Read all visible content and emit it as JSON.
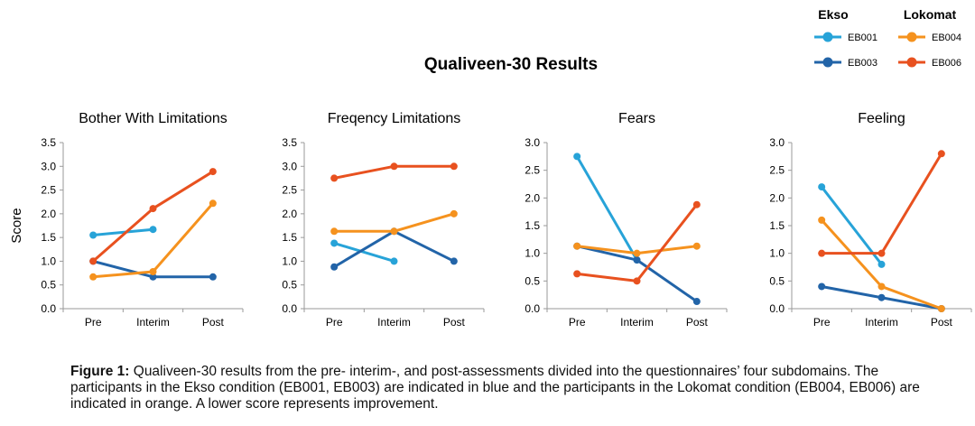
{
  "title": "Qualiveen-30 Results",
  "legend": {
    "groups": [
      {
        "name": "Ekso",
        "entries": [
          {
            "id": "EB001",
            "color": "#27a3d8"
          },
          {
            "id": "EB003",
            "color": "#2264a8"
          }
        ]
      },
      {
        "name": "Lokomat",
        "entries": [
          {
            "id": "EB004",
            "color": "#f5921e"
          },
          {
            "id": "EB006",
            "color": "#e8511f"
          }
        ]
      }
    ]
  },
  "caption": {
    "label": "Figure 1:",
    "text": " Qualiveen-30 results from the pre- interim-, and post-assessments divided into the questionnaires’ four subdomains. The participants in the Ekso condition (EB001, EB003) are indicated in blue and the participants in the Lokomat condition (EB004, EB006) are indicated in orange. A lower score represents improvement."
  },
  "chart_data": [
    {
      "type": "line",
      "title": "Bother With Limitations",
      "ylabel": "Score",
      "categories": [
        "Pre",
        "Interim",
        "Post"
      ],
      "ylim": [
        0,
        3.5
      ],
      "yticks": [
        "0.0",
        "0.5",
        "1.0",
        "1.5",
        "2.0",
        "2.5",
        "3.0",
        "3.5"
      ],
      "series": [
        {
          "name": "EB001",
          "color": "#27a3d8",
          "values": [
            1.55,
            1.67,
            null
          ]
        },
        {
          "name": "EB003",
          "color": "#2264a8",
          "values": [
            1.0,
            0.67,
            0.67
          ]
        },
        {
          "name": "EB004",
          "color": "#f5921e",
          "values": [
            0.67,
            0.78,
            2.22
          ]
        },
        {
          "name": "EB006",
          "color": "#e8511f",
          "values": [
            1.0,
            2.11,
            2.89
          ]
        }
      ]
    },
    {
      "type": "line",
      "title": "Freqency Limitations",
      "ylabel": "",
      "categories": [
        "Pre",
        "Interim",
        "Post"
      ],
      "ylim": [
        0,
        3.5
      ],
      "yticks": [
        "0.0",
        "0.5",
        "1.0",
        "1.5",
        "2.0",
        "2.5",
        "3.0",
        "3.5"
      ],
      "series": [
        {
          "name": "EB001",
          "color": "#27a3d8",
          "values": [
            1.38,
            1.0,
            null
          ]
        },
        {
          "name": "EB003",
          "color": "#2264a8",
          "values": [
            0.88,
            1.63,
            1.0
          ]
        },
        {
          "name": "EB004",
          "color": "#f5921e",
          "values": [
            1.63,
            1.63,
            2.0
          ]
        },
        {
          "name": "EB006",
          "color": "#e8511f",
          "values": [
            2.75,
            3.0,
            3.0
          ]
        }
      ]
    },
    {
      "type": "line",
      "title": "Fears",
      "ylabel": "",
      "categories": [
        "Pre",
        "Interim",
        "Post"
      ],
      "ylim": [
        0,
        3.0
      ],
      "yticks": [
        "0.0",
        "0.5",
        "1.0",
        "1.5",
        "2.0",
        "2.5",
        "3.0"
      ],
      "series": [
        {
          "name": "EB001",
          "color": "#27a3d8",
          "values": [
            2.75,
            0.88,
            null
          ]
        },
        {
          "name": "EB003",
          "color": "#2264a8",
          "values": [
            1.13,
            0.88,
            0.13
          ]
        },
        {
          "name": "EB004",
          "color": "#f5921e",
          "values": [
            1.13,
            1.0,
            1.13
          ]
        },
        {
          "name": "EB006",
          "color": "#e8511f",
          "values": [
            0.63,
            0.5,
            1.88
          ]
        }
      ]
    },
    {
      "type": "line",
      "title": "Feeling",
      "ylabel": "",
      "categories": [
        "Pre",
        "Interim",
        "Post"
      ],
      "ylim": [
        0,
        3.0
      ],
      "yticks": [
        "0.0",
        "0.5",
        "1.0",
        "1.5",
        "2.0",
        "2.5",
        "3.0"
      ],
      "series": [
        {
          "name": "EB001",
          "color": "#27a3d8",
          "values": [
            2.2,
            0.8,
            null
          ]
        },
        {
          "name": "EB003",
          "color": "#2264a8",
          "values": [
            0.4,
            0.2,
            0.0
          ]
        },
        {
          "name": "EB004",
          "color": "#f5921e",
          "values": [
            1.6,
            0.4,
            0.0
          ]
        },
        {
          "name": "EB006",
          "color": "#e8511f",
          "values": [
            1.0,
            1.0,
            2.8
          ]
        }
      ]
    }
  ]
}
